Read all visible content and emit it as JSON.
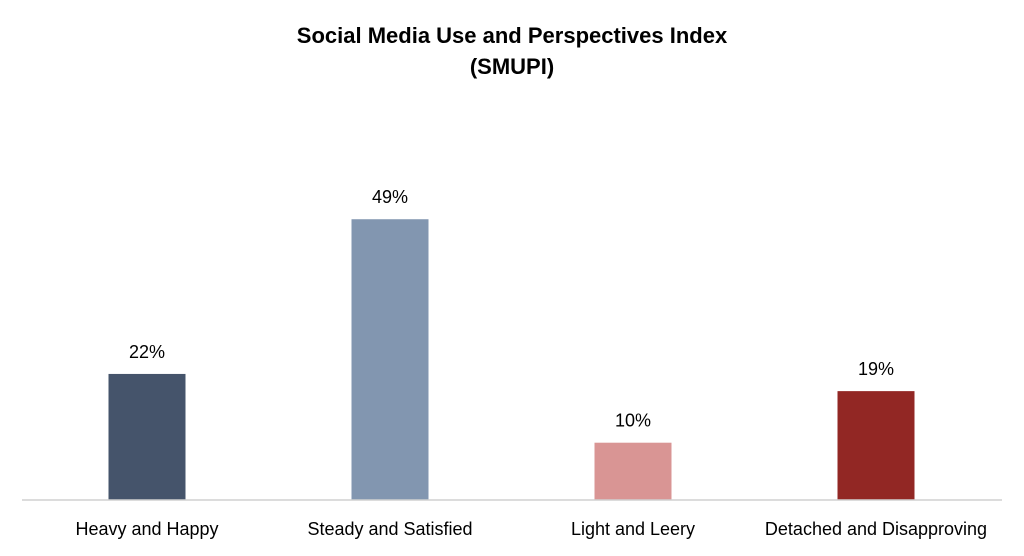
{
  "chart_data": {
    "type": "bar",
    "title": "Social Media Use and Perspectives Index",
    "subtitle": "(SMUPI)",
    "xlabel": "",
    "ylabel": "",
    "categories": [
      "Heavy and Happy",
      "Steady and Satisfied",
      "Light and Leery",
      "Detached and Disapproving"
    ],
    "values": [
      22,
      49,
      10,
      19
    ],
    "value_labels": [
      "22%",
      "49%",
      "10%",
      "19%"
    ],
    "colors": [
      "#45546b",
      "#8296b0",
      "#d99594",
      "#922724"
    ],
    "ylim": [
      0,
      100
    ],
    "grid": false,
    "legend": "none"
  }
}
